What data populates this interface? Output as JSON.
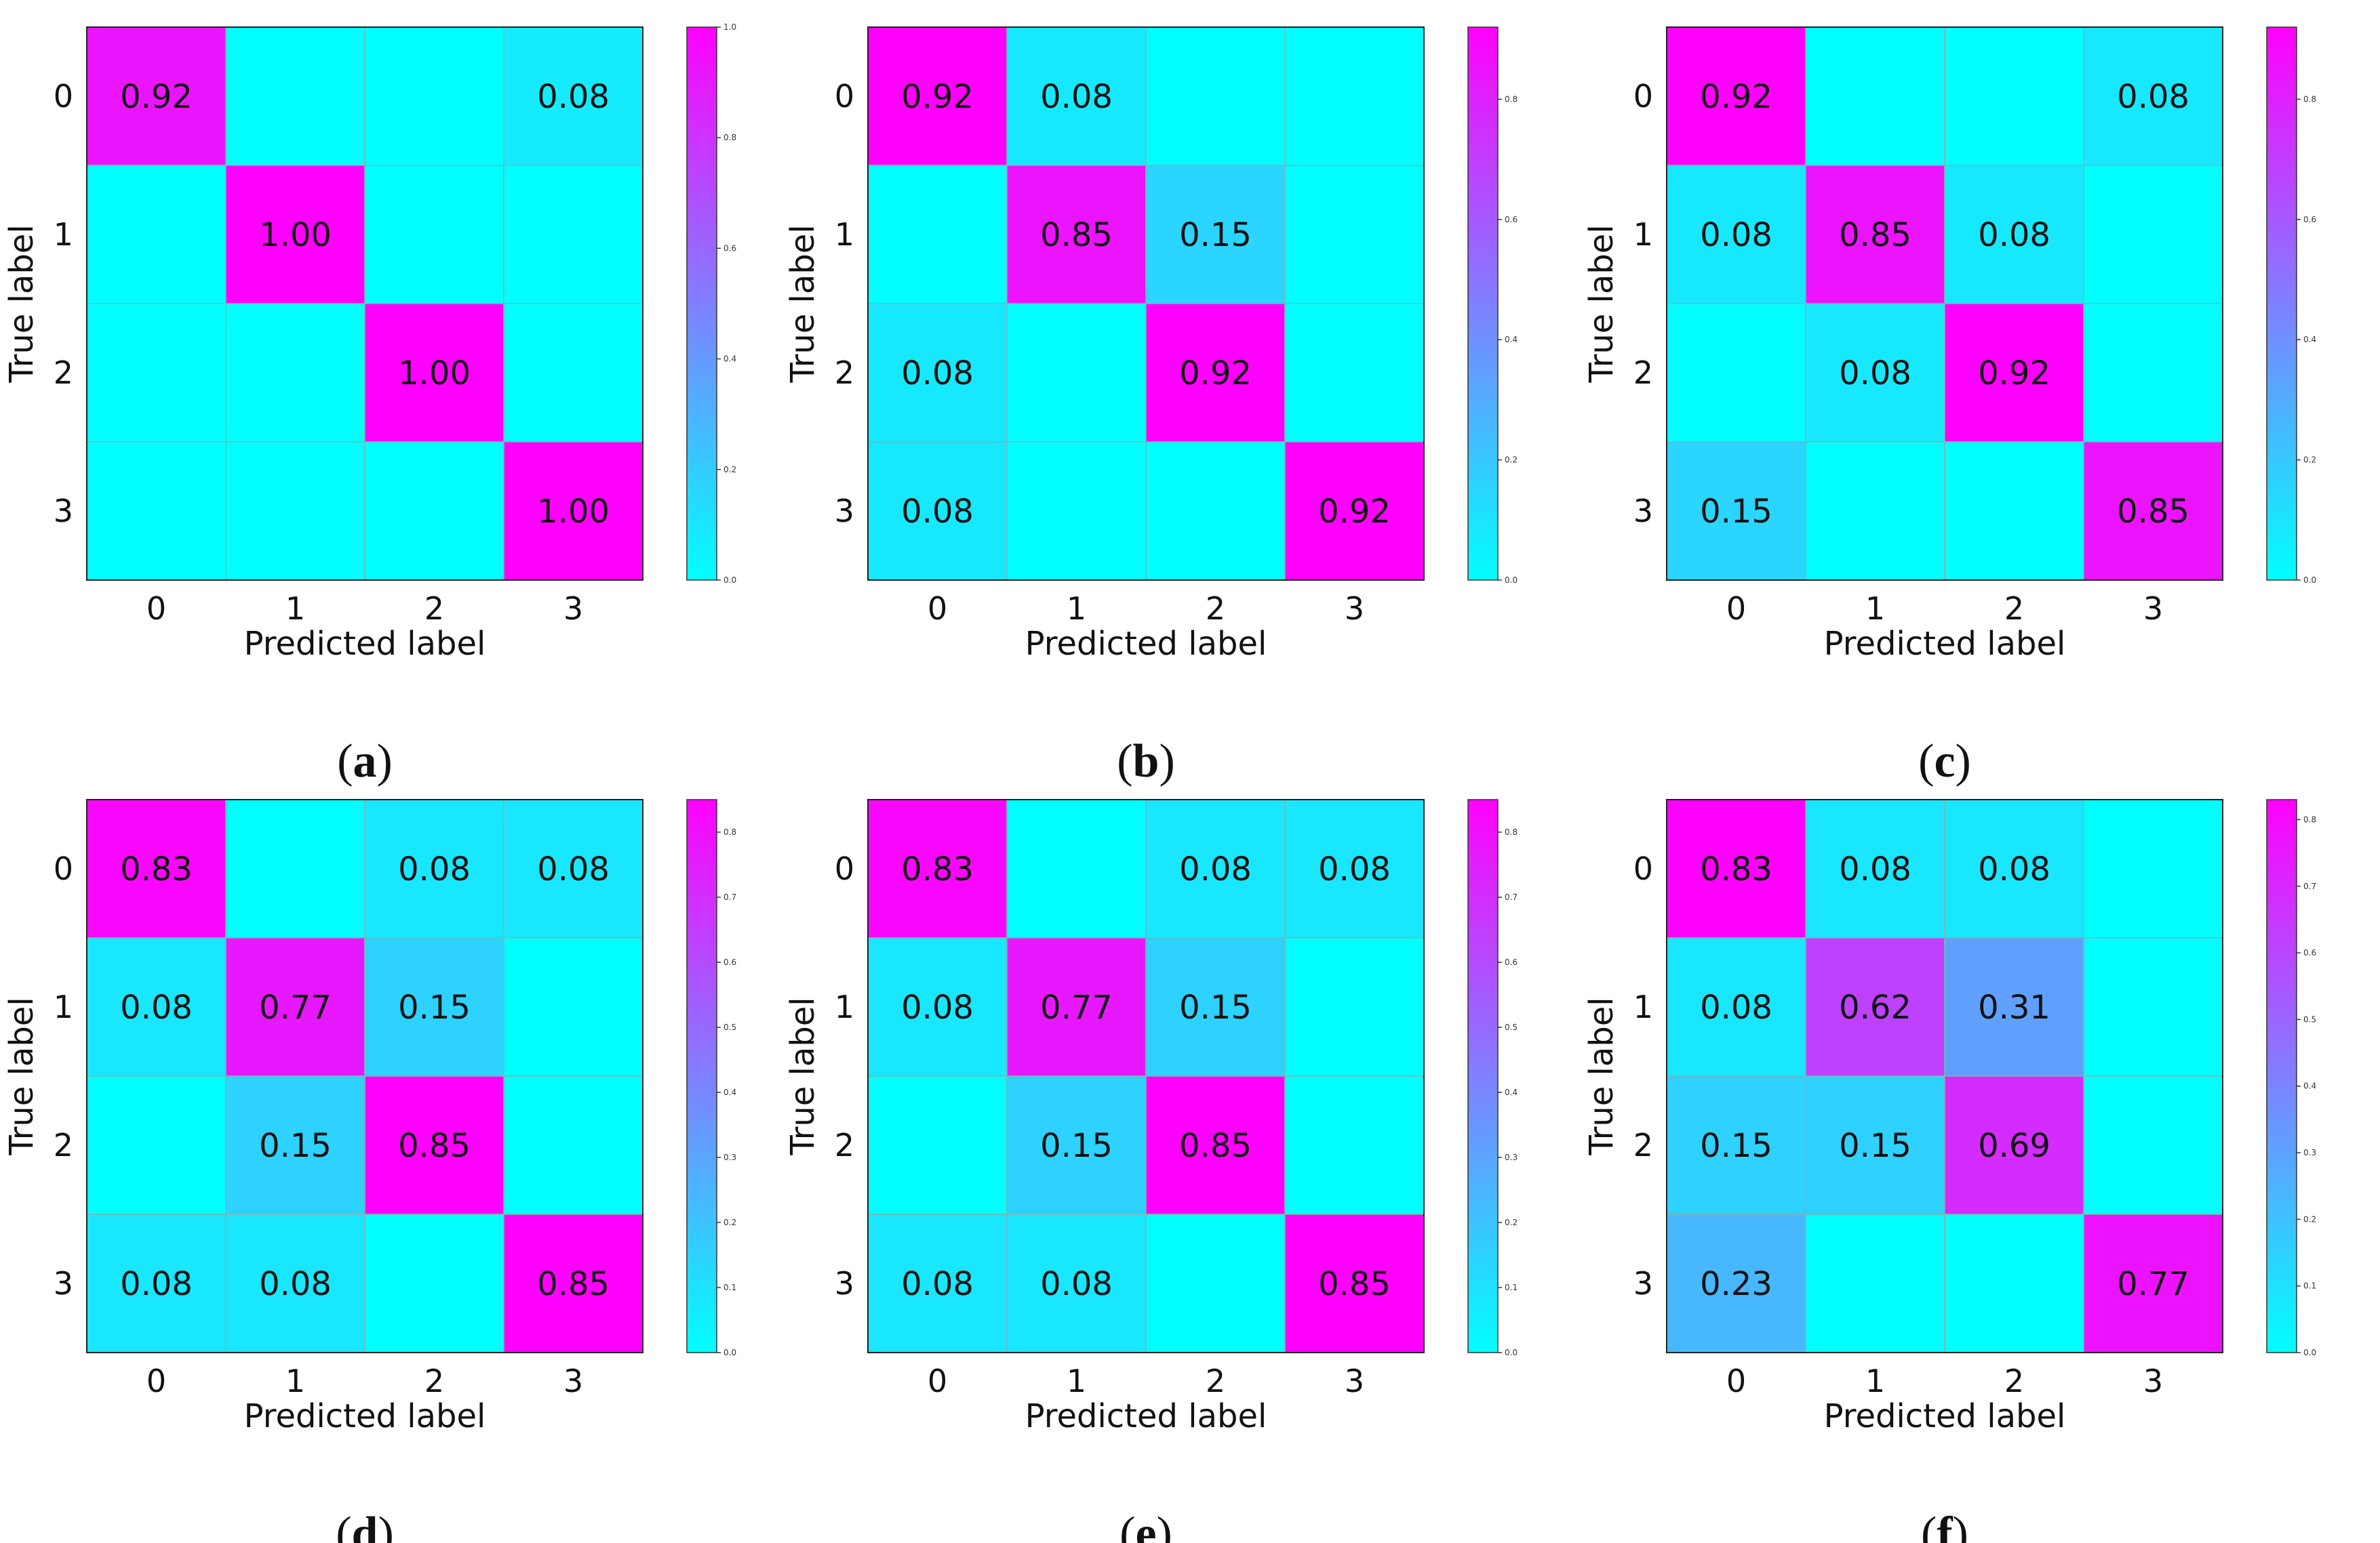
{
  "colormap": {
    "low": "#00ffff",
    "high": "#ff00ff"
  },
  "chart_data": [
    {
      "type": "heatmap",
      "panel": "a",
      "xlabel": "Predicted label",
      "ylabel": "True label",
      "x_ticks": [
        "0",
        "1",
        "2",
        "3"
      ],
      "y_ticks": [
        "0",
        "1",
        "2",
        "3"
      ],
      "values": [
        [
          0.92,
          0,
          0,
          0.08
        ],
        [
          0,
          1.0,
          0,
          0
        ],
        [
          0,
          0,
          1.0,
          0
        ],
        [
          0,
          0,
          0,
          1.0
        ]
      ],
      "labels": [
        [
          "0.92",
          "",
          "",
          "0.08"
        ],
        [
          "",
          "1.00",
          "",
          ""
        ],
        [
          "",
          "",
          "1.00",
          ""
        ],
        [
          "",
          "",
          "",
          "1.00"
        ]
      ],
      "colorbar_max": 1.0,
      "colorbar_ticks": [
        "0.0",
        "0.2",
        "0.4",
        "0.6",
        "0.8",
        "1.0"
      ],
      "caption": {
        "open": "(",
        "letter": "a",
        "close": ")"
      }
    },
    {
      "type": "heatmap",
      "panel": "b",
      "xlabel": "Predicted label",
      "ylabel": "True label",
      "x_ticks": [
        "0",
        "1",
        "2",
        "3"
      ],
      "y_ticks": [
        "0",
        "1",
        "2",
        "3"
      ],
      "values": [
        [
          0.92,
          0.08,
          0,
          0
        ],
        [
          0,
          0.85,
          0.15,
          0
        ],
        [
          0.08,
          0,
          0.92,
          0
        ],
        [
          0.08,
          0,
          0,
          0.92
        ]
      ],
      "labels": [
        [
          "0.92",
          "0.08",
          "",
          ""
        ],
        [
          "",
          "0.85",
          "0.15",
          ""
        ],
        [
          "0.08",
          "",
          "0.92",
          ""
        ],
        [
          "0.08",
          "",
          "",
          "0.92"
        ]
      ],
      "colorbar_max": 0.92,
      "colorbar_ticks": [
        "0.0",
        "0.2",
        "0.4",
        "0.6",
        "0.8"
      ],
      "caption": {
        "open": "(",
        "letter": "b",
        "close": ")"
      }
    },
    {
      "type": "heatmap",
      "panel": "c",
      "xlabel": "Predicted label",
      "ylabel": "True label",
      "x_ticks": [
        "0",
        "1",
        "2",
        "3"
      ],
      "y_ticks": [
        "0",
        "1",
        "2",
        "3"
      ],
      "values": [
        [
          0.92,
          0,
          0,
          0.08
        ],
        [
          0.08,
          0.85,
          0.08,
          0
        ],
        [
          0,
          0.08,
          0.92,
          0
        ],
        [
          0.15,
          0,
          0,
          0.85
        ]
      ],
      "labels": [
        [
          "0.92",
          "",
          "",
          "0.08"
        ],
        [
          "0.08",
          "0.85",
          "0.08",
          ""
        ],
        [
          "",
          "0.08",
          "0.92",
          ""
        ],
        [
          "0.15",
          "",
          "",
          "0.85"
        ]
      ],
      "colorbar_max": 0.92,
      "colorbar_ticks": [
        "0.0",
        "0.2",
        "0.4",
        "0.6",
        "0.8"
      ],
      "caption": {
        "open": "(",
        "letter": "c",
        "close": ")"
      }
    },
    {
      "type": "heatmap",
      "panel": "d",
      "xlabel": "Predicted label",
      "ylabel": "True label",
      "x_ticks": [
        "0",
        "1",
        "2",
        "3"
      ],
      "y_ticks": [
        "0",
        "1",
        "2",
        "3"
      ],
      "values": [
        [
          0.83,
          0,
          0.08,
          0.08
        ],
        [
          0.08,
          0.77,
          0.15,
          0
        ],
        [
          0,
          0.15,
          0.85,
          0
        ],
        [
          0.08,
          0.08,
          0,
          0.85
        ]
      ],
      "labels": [
        [
          "0.83",
          "",
          "0.08",
          "0.08"
        ],
        [
          "0.08",
          "0.77",
          "0.15",
          ""
        ],
        [
          "",
          "0.15",
          "0.85",
          ""
        ],
        [
          "0.08",
          "0.08",
          "",
          "0.85"
        ]
      ],
      "colorbar_max": 0.85,
      "colorbar_ticks": [
        "0.0",
        "0.1",
        "0.2",
        "0.3",
        "0.4",
        "0.5",
        "0.6",
        "0.7",
        "0.8"
      ],
      "caption": {
        "open": "(",
        "letter": "d",
        "close": ")"
      }
    },
    {
      "type": "heatmap",
      "panel": "e",
      "xlabel": "Predicted label",
      "ylabel": "True label",
      "x_ticks": [
        "0",
        "1",
        "2",
        "3"
      ],
      "y_ticks": [
        "0",
        "1",
        "2",
        "3"
      ],
      "values": [
        [
          0.83,
          0,
          0.08,
          0.08
        ],
        [
          0.08,
          0.77,
          0.15,
          0
        ],
        [
          0,
          0.15,
          0.85,
          0
        ],
        [
          0.08,
          0.08,
          0,
          0.85
        ]
      ],
      "labels": [
        [
          "0.83",
          "",
          "0.08",
          "0.08"
        ],
        [
          "0.08",
          "0.77",
          "0.15",
          ""
        ],
        [
          "",
          "0.15",
          "0.85",
          ""
        ],
        [
          "0.08",
          "0.08",
          "",
          "0.85"
        ]
      ],
      "colorbar_max": 0.85,
      "colorbar_ticks": [
        "0.0",
        "0.1",
        "0.2",
        "0.3",
        "0.4",
        "0.5",
        "0.6",
        "0.7",
        "0.8"
      ],
      "caption": {
        "open": "(",
        "letter": "e",
        "close": ")"
      }
    },
    {
      "type": "heatmap",
      "panel": "f",
      "xlabel": "Predicted label",
      "ylabel": "True label",
      "x_ticks": [
        "0",
        "1",
        "2",
        "3"
      ],
      "y_ticks": [
        "0",
        "1",
        "2",
        "3"
      ],
      "values": [
        [
          0.83,
          0.08,
          0.08,
          0
        ],
        [
          0.08,
          0.62,
          0.31,
          0
        ],
        [
          0.15,
          0.15,
          0.69,
          0
        ],
        [
          0.23,
          0,
          0,
          0.77
        ]
      ],
      "labels": [
        [
          "0.83",
          "0.08",
          "0.08",
          ""
        ],
        [
          "0.08",
          "0.62",
          "0.31",
          ""
        ],
        [
          "0.15",
          "0.15",
          "0.69",
          ""
        ],
        [
          "0.23",
          "",
          "",
          "0.77"
        ]
      ],
      "colorbar_max": 0.83,
      "colorbar_ticks": [
        "0.0",
        "0.1",
        "0.2",
        "0.3",
        "0.4",
        "0.5",
        "0.6",
        "0.7",
        "0.8"
      ],
      "caption": {
        "open": "(",
        "letter": "f",
        "close": ")"
      }
    }
  ]
}
